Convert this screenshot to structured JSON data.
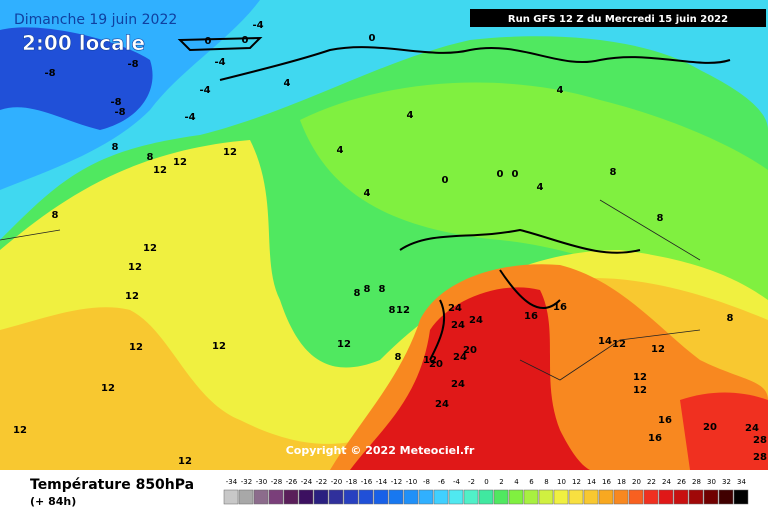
{
  "header": {
    "date": "Dimanche 19 juin 2022",
    "time": "2:00 locale",
    "run": "Run GFS 12 Z du Mercredi 15 juin 2022"
  },
  "copyright": "Copyright © 2022 Meteociel.fr",
  "footer": {
    "title": "Température 850hPa",
    "lead": "(+ 84h)"
  },
  "contour_labels": [
    "-8",
    "-8",
    "-8",
    "-8",
    "-4",
    "-4",
    "-4",
    "-4",
    "0",
    "0",
    "0",
    "4",
    "4",
    "4",
    "4",
    "4",
    "4",
    "0",
    "0",
    "0",
    "8",
    "8",
    "8",
    "8",
    "8",
    "12",
    "12",
    "12",
    "12",
    "12",
    "12",
    "12",
    "12",
    "12",
    "12",
    "12",
    "12",
    "12",
    "12",
    "12",
    "8",
    "8",
    "8",
    "8",
    "12",
    "8",
    "12",
    "24",
    "24",
    "24",
    "20",
    "24",
    "20",
    "24",
    "24",
    "16",
    "16",
    "14",
    "16",
    "16",
    "20",
    "24",
    "28",
    "28",
    "12",
    "8"
  ],
  "legend": {
    "values": [
      -34,
      -32,
      -30,
      -28,
      -26,
      -24,
      -22,
      -20,
      -18,
      -16,
      -14,
      -12,
      -10,
      -8,
      -6,
      -4,
      -2,
      0,
      2,
      4,
      6,
      8,
      10,
      12,
      14,
      16,
      18,
      20,
      22,
      24,
      26,
      28,
      30,
      32,
      34
    ],
    "colors": [
      "#c8c8c8",
      "#a8a8a8",
      "#8c6c8c",
      "#7a3f7a",
      "#5a1f5a",
      "#3c1060",
      "#2a2080",
      "#30309c",
      "#2840c0",
      "#2050d8",
      "#1860e8",
      "#1878f0",
      "#2090f8",
      "#30b0ff",
      "#40d0ff",
      "#50e8f0",
      "#50f0c8",
      "#40e8a0",
      "#50e860",
      "#80f040",
      "#a8f040",
      "#d0f040",
      "#f0f040",
      "#f8e040",
      "#f8c830",
      "#f8a820",
      "#f88820",
      "#f86020",
      "#f03020",
      "#e01818",
      "#c81010",
      "#a00808",
      "#700000",
      "#400000",
      "#000000"
    ]
  }
}
